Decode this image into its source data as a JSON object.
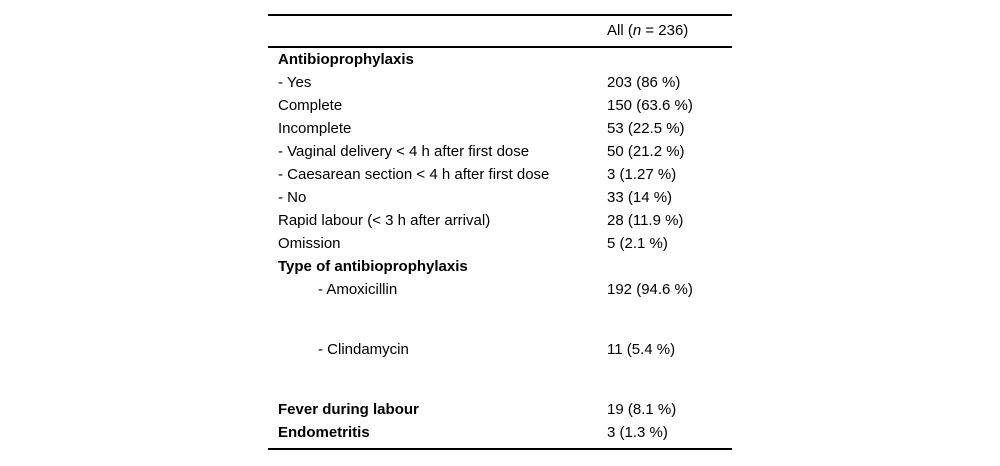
{
  "page": {
    "background_color": "#ffffff",
    "text_color": "#000000",
    "rule_color": "#000000"
  },
  "table": {
    "header": {
      "prefix": "All (",
      "n_symbol": "n",
      "suffix": " = 236)"
    },
    "rows": [
      {
        "label": "Antibioprophylaxis",
        "value": ""
      },
      {
        "label": "- Yes",
        "value": "203 (86 %)"
      },
      {
        "label": "Complete",
        "value": "150 (63.6 %)"
      },
      {
        "label": "Incomplete",
        "value": "53 (22.5 %)"
      },
      {
        "label": "- Vaginal delivery < 4 h after first dose",
        "value": "50 (21.2 %)"
      },
      {
        "label": "- Caesarean section < 4 h after first dose",
        "value": "3 (1.27 %)"
      },
      {
        "label": "- No",
        "value": "33 (14 %)"
      },
      {
        "label": "Rapid labour (< 3 h after arrival)",
        "value": "28 (11.9 %)"
      },
      {
        "label": "Omission",
        "value": "5 (2.1 %)"
      },
      {
        "label": "Type of antibioprophylaxis",
        "value": ""
      },
      {
        "label": "- Amoxicillin",
        "value": "192 (94.6 %)"
      },
      {
        "label": "- Clindamycin",
        "value": "11 (5.4 %)"
      },
      {
        "label": "Fever during labour",
        "value": "19 (8.1 %)"
      },
      {
        "label": "Endometritis",
        "value": "3 (1.3 %)"
      }
    ]
  }
}
